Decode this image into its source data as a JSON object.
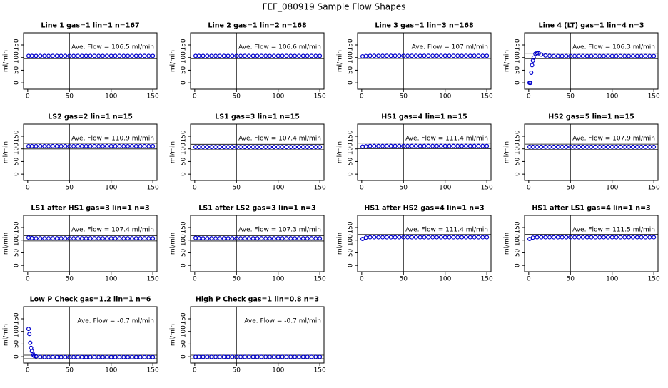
{
  "title": "FEF_080919  Sample Flow Shapes",
  "chart_data": [
    {
      "type": "scatter",
      "title": "Line 1 gas=1 lin=1 n=167",
      "annotation": "Ave. Flow = 106.5 ml/min",
      "ylabel": "ml/min",
      "xlim": [
        -5,
        155
      ],
      "ylim": [
        -25,
        198
      ],
      "xticks": [
        0,
        50,
        100,
        150
      ],
      "yticks": [
        0,
        50,
        100,
        150
      ],
      "vline": 50,
      "hlines": [
        95.9,
        117.2
      ],
      "color": "#0000cc",
      "x": [
        1,
        5,
        10,
        15,
        20,
        25,
        30,
        35,
        40,
        45,
        50,
        55,
        60,
        65,
        70,
        75,
        80,
        85,
        90,
        95,
        100,
        105,
        110,
        115,
        120,
        125,
        130,
        135,
        140,
        145,
        150
      ],
      "values": [
        106.5,
        106.5,
        106.5,
        106.5,
        106.5,
        106.5,
        106.5,
        106.5,
        106.5,
        106.5,
        106.5,
        106.5,
        106.5,
        106.5,
        106.5,
        106.5,
        106.5,
        106.5,
        106.5,
        106.5,
        106.5,
        106.5,
        106.5,
        106.5,
        106.5,
        106.5,
        106.5,
        106.5,
        106.5,
        106.5,
        106.5
      ]
    },
    {
      "type": "scatter",
      "title": "Line 2 gas=1 lin=2 n=168",
      "annotation": "Ave. Flow = 106.6 ml/min",
      "ylabel": "ml/min",
      "xlim": [
        -5,
        155
      ],
      "ylim": [
        -25,
        198
      ],
      "xticks": [
        0,
        50,
        100,
        150
      ],
      "yticks": [
        0,
        50,
        100,
        150
      ],
      "vline": 50,
      "hlines": [
        95.9,
        117.3
      ],
      "color": "#0000cc",
      "x": [
        1,
        5,
        10,
        15,
        20,
        25,
        30,
        35,
        40,
        45,
        50,
        55,
        60,
        65,
        70,
        75,
        80,
        85,
        90,
        95,
        100,
        105,
        110,
        115,
        120,
        125,
        130,
        135,
        140,
        145,
        150
      ],
      "values": [
        106.6,
        106.6,
        106.6,
        106.6,
        106.6,
        106.6,
        106.6,
        106.6,
        106.6,
        106.6,
        106.6,
        106.6,
        106.6,
        106.6,
        106.6,
        106.6,
        106.6,
        106.6,
        106.6,
        106.6,
        106.6,
        106.6,
        106.6,
        106.6,
        106.6,
        106.6,
        106.6,
        106.6,
        106.6,
        106.6,
        106.6
      ]
    },
    {
      "type": "scatter",
      "title": "Line 3 gas=1 lin=3 n=168",
      "annotation": "Ave. Flow = 107 ml/min",
      "ylabel": "ml/min",
      "xlim": [
        -5,
        155
      ],
      "ylim": [
        -25,
        198
      ],
      "xticks": [
        0,
        50,
        100,
        150
      ],
      "yticks": [
        0,
        50,
        100,
        150
      ],
      "vline": 50,
      "hlines": [
        96.3,
        117.7
      ],
      "color": "#0000cc",
      "x": [
        1,
        5,
        10,
        15,
        20,
        25,
        30,
        35,
        40,
        45,
        50,
        55,
        60,
        65,
        70,
        75,
        80,
        85,
        90,
        95,
        100,
        105,
        110,
        115,
        120,
        125,
        130,
        135,
        140,
        145,
        150
      ],
      "values": [
        105,
        106,
        107,
        107,
        107,
        107,
        107,
        107,
        107,
        107,
        107,
        107,
        107,
        107,
        107,
        107,
        107,
        107,
        107,
        107,
        107,
        107,
        107,
        107,
        107,
        107,
        107,
        107,
        107,
        107,
        107
      ]
    },
    {
      "type": "scatter",
      "title": "Line 4 (LT) gas=1 lin=4 n=3",
      "annotation": "Ave. Flow = 106.3 ml/min",
      "ylabel": "ml/min",
      "xlim": [
        -5,
        155
      ],
      "ylim": [
        -25,
        198
      ],
      "xticks": [
        0,
        50,
        100,
        150
      ],
      "yticks": [
        0,
        50,
        100,
        150
      ],
      "vline": 50,
      "hlines": [
        95.7,
        116.9
      ],
      "color": "#0000cc",
      "x": [
        1,
        2,
        3,
        4,
        5,
        6,
        8,
        10,
        12,
        15,
        20,
        25,
        30,
        35,
        40,
        45,
        50,
        55,
        60,
        65,
        70,
        75,
        80,
        85,
        90,
        95,
        100,
        105,
        110,
        115,
        120,
        125,
        130,
        135,
        140,
        145,
        150
      ],
      "values": [
        0,
        0,
        40,
        70,
        88,
        100,
        115,
        118,
        117,
        112,
        108,
        107,
        106,
        106,
        106,
        106,
        106,
        106,
        106,
        106,
        106,
        106,
        106,
        106,
        106,
        106,
        106,
        106,
        106,
        106,
        106,
        106,
        106,
        106,
        106,
        106,
        106
      ]
    },
    {
      "type": "scatter",
      "title": "LS2 gas=2 lin=1 n=15",
      "annotation": "Ave. Flow = 110.9 ml/min",
      "ylabel": "ml/min",
      "xlim": [
        -5,
        155
      ],
      "ylim": [
        -25,
        198
      ],
      "xticks": [
        0,
        50,
        100,
        150
      ],
      "yticks": [
        0,
        50,
        100,
        150
      ],
      "vline": 50,
      "hlines": [
        99.8,
        122
      ],
      "color": "#0000cc",
      "x": [
        1,
        5,
        10,
        15,
        20,
        25,
        30,
        35,
        40,
        45,
        50,
        55,
        60,
        65,
        70,
        75,
        80,
        85,
        90,
        95,
        100,
        105,
        110,
        115,
        120,
        125,
        130,
        135,
        140,
        145,
        150
      ],
      "values": [
        110.9,
        110.9,
        110.9,
        110.9,
        110.9,
        110.9,
        110.9,
        110.9,
        110.9,
        110.9,
        110.9,
        110.9,
        110.9,
        110.9,
        110.9,
        110.9,
        110.9,
        110.9,
        110.9,
        110.9,
        110.9,
        110.9,
        110.9,
        110.9,
        110.9,
        110.9,
        110.9,
        110.9,
        110.9,
        110.9,
        110.9
      ]
    },
    {
      "type": "scatter",
      "title": "LS1 gas=3 lin=1 n=15",
      "annotation": "Ave. Flow = 107.4 ml/min",
      "ylabel": "ml/min",
      "xlim": [
        -5,
        155
      ],
      "ylim": [
        -25,
        198
      ],
      "xticks": [
        0,
        50,
        100,
        150
      ],
      "yticks": [
        0,
        50,
        100,
        150
      ],
      "vline": 50,
      "hlines": [
        96.7,
        118.1
      ],
      "color": "#0000cc",
      "x": [
        1,
        5,
        10,
        15,
        20,
        25,
        30,
        35,
        40,
        45,
        50,
        55,
        60,
        65,
        70,
        75,
        80,
        85,
        90,
        95,
        100,
        105,
        110,
        115,
        120,
        125,
        130,
        135,
        140,
        145,
        150
      ],
      "values": [
        107.4,
        107.4,
        107.4,
        107.4,
        107.4,
        107.4,
        107.4,
        107.4,
        107.4,
        107.4,
        107.4,
        107.4,
        107.4,
        107.4,
        107.4,
        107.4,
        107.4,
        107.4,
        107.4,
        107.4,
        107.4,
        107.4,
        107.4,
        107.4,
        107.4,
        107.4,
        107.4,
        107.4,
        107.4,
        107.4,
        107.4
      ]
    },
    {
      "type": "scatter",
      "title": "HS1 gas=4 lin=1 n=15",
      "annotation": "Ave. Flow = 111.4 ml/min",
      "ylabel": "ml/min",
      "xlim": [
        -5,
        155
      ],
      "ylim": [
        -25,
        198
      ],
      "xticks": [
        0,
        50,
        100,
        150
      ],
      "yticks": [
        0,
        50,
        100,
        150
      ],
      "vline": 50,
      "hlines": [
        100.3,
        122.5
      ],
      "color": "#0000cc",
      "x": [
        1,
        5,
        10,
        15,
        20,
        25,
        30,
        35,
        40,
        45,
        50,
        55,
        60,
        65,
        70,
        75,
        80,
        85,
        90,
        95,
        100,
        105,
        110,
        115,
        120,
        125,
        130,
        135,
        140,
        145,
        150
      ],
      "values": [
        109,
        110,
        111.4,
        111.4,
        111.4,
        111.4,
        111.4,
        111.4,
        111.4,
        111.4,
        111.4,
        111.4,
        111.4,
        111.4,
        111.4,
        111.4,
        111.4,
        111.4,
        111.4,
        111.4,
        111.4,
        111.4,
        111.4,
        111.4,
        111.4,
        111.4,
        111.4,
        111.4,
        111.4,
        111.4,
        111.4
      ]
    },
    {
      "type": "scatter",
      "title": "HS2 gas=5 lin=1 n=15",
      "annotation": "Ave. Flow = 107.9 ml/min",
      "ylabel": "ml/min",
      "xlim": [
        -5,
        155
      ],
      "ylim": [
        -25,
        198
      ],
      "xticks": [
        0,
        50,
        100,
        150
      ],
      "yticks": [
        0,
        50,
        100,
        150
      ],
      "vline": 50,
      "hlines": [
        97.1,
        118.7
      ],
      "color": "#0000cc",
      "x": [
        1,
        5,
        10,
        15,
        20,
        25,
        30,
        35,
        40,
        45,
        50,
        55,
        60,
        65,
        70,
        75,
        80,
        85,
        90,
        95,
        100,
        105,
        110,
        115,
        120,
        125,
        130,
        135,
        140,
        145,
        150
      ],
      "values": [
        107.9,
        107.9,
        107.9,
        107.9,
        107.9,
        107.9,
        107.9,
        107.9,
        107.9,
        107.9,
        107.9,
        107.9,
        107.9,
        107.9,
        107.9,
        107.9,
        107.9,
        107.9,
        107.9,
        107.9,
        107.9,
        107.9,
        107.9,
        107.9,
        107.9,
        107.9,
        107.9,
        107.9,
        107.9,
        107.9,
        107.9
      ]
    },
    {
      "type": "scatter",
      "title": "LS1 after HS1 gas=3 lin=1 n=3",
      "annotation": "Ave. Flow = 107.4 ml/min",
      "ylabel": "ml/min",
      "xlim": [
        -5,
        155
      ],
      "ylim": [
        -25,
        198
      ],
      "xticks": [
        0,
        50,
        100,
        150
      ],
      "yticks": [
        0,
        50,
        100,
        150
      ],
      "vline": 50,
      "hlines": [
        96.7,
        118.1
      ],
      "color": "#0000cc",
      "x": [
        1,
        5,
        10,
        15,
        20,
        25,
        30,
        35,
        40,
        45,
        50,
        55,
        60,
        65,
        70,
        75,
        80,
        85,
        90,
        95,
        100,
        105,
        110,
        115,
        120,
        125,
        130,
        135,
        140,
        145,
        150
      ],
      "values": [
        110,
        108,
        107.4,
        107.4,
        107.4,
        107.4,
        107.4,
        107.4,
        107.4,
        107.4,
        107.4,
        107.4,
        107.4,
        107.4,
        107.4,
        107.4,
        107.4,
        107.4,
        107.4,
        107.4,
        107.4,
        107.4,
        107.4,
        107.4,
        107.4,
        107.4,
        107.4,
        107.4,
        107.4,
        107.4,
        107.4
      ]
    },
    {
      "type": "scatter",
      "title": "LS1 after LS2 gas=3 lin=1 n=3",
      "annotation": "Ave. Flow = 107.3 ml/min",
      "ylabel": "ml/min",
      "xlim": [
        -5,
        155
      ],
      "ylim": [
        -25,
        198
      ],
      "xticks": [
        0,
        50,
        100,
        150
      ],
      "yticks": [
        0,
        50,
        100,
        150
      ],
      "vline": 50,
      "hlines": [
        96.6,
        118
      ],
      "color": "#0000cc",
      "x": [
        1,
        5,
        10,
        15,
        20,
        25,
        30,
        35,
        40,
        45,
        50,
        55,
        60,
        65,
        70,
        75,
        80,
        85,
        90,
        95,
        100,
        105,
        110,
        115,
        120,
        125,
        130,
        135,
        140,
        145,
        150
      ],
      "values": [
        109,
        108,
        107.3,
        107.3,
        107.3,
        107.3,
        107.3,
        107.3,
        107.3,
        107.3,
        107.3,
        107.3,
        107.3,
        107.3,
        107.3,
        107.3,
        107.3,
        107.3,
        107.3,
        107.3,
        107.3,
        107.3,
        107.3,
        107.3,
        107.3,
        107.3,
        107.3,
        107.3,
        107.3,
        107.3,
        107.3
      ]
    },
    {
      "type": "scatter",
      "title": "HS1 after HS2 gas=4 lin=1 n=3",
      "annotation": "Ave. Flow = 111.4 ml/min",
      "ylabel": "ml/min",
      "xlim": [
        -5,
        155
      ],
      "ylim": [
        -25,
        198
      ],
      "xticks": [
        0,
        50,
        100,
        150
      ],
      "yticks": [
        0,
        50,
        100,
        150
      ],
      "vline": 50,
      "hlines": [
        100.3,
        122.5
      ],
      "color": "#0000cc",
      "x": [
        1,
        5,
        10,
        15,
        20,
        25,
        30,
        35,
        40,
        45,
        50,
        55,
        60,
        65,
        70,
        75,
        80,
        85,
        90,
        95,
        100,
        105,
        110,
        115,
        120,
        125,
        130,
        135,
        140,
        145,
        150
      ],
      "values": [
        105,
        110,
        111.4,
        111.4,
        111.4,
        111.4,
        111.4,
        111.4,
        111.4,
        111.4,
        111.4,
        111.4,
        111.4,
        111.4,
        111.4,
        111.4,
        111.4,
        111.4,
        111.4,
        111.4,
        111.4,
        111.4,
        111.4,
        111.4,
        111.4,
        111.4,
        111.4,
        111.4,
        111.4,
        111.4,
        111.4
      ]
    },
    {
      "type": "scatter",
      "title": "HS1 after LS1 gas=4 lin=1 n=3",
      "annotation": "Ave. Flow = 111.5 ml/min",
      "ylabel": "ml/min",
      "xlim": [
        -5,
        155
      ],
      "ylim": [
        -25,
        198
      ],
      "xticks": [
        0,
        50,
        100,
        150
      ],
      "yticks": [
        0,
        50,
        100,
        150
      ],
      "vline": 50,
      "hlines": [
        100.4,
        122.7
      ],
      "color": "#0000cc",
      "x": [
        1,
        5,
        10,
        15,
        20,
        25,
        30,
        35,
        40,
        45,
        50,
        55,
        60,
        65,
        70,
        75,
        80,
        85,
        90,
        95,
        100,
        105,
        110,
        115,
        120,
        125,
        130,
        135,
        140,
        145,
        150
      ],
      "values": [
        105,
        110,
        111.5,
        111.5,
        111.5,
        111.5,
        111.5,
        111.5,
        111.5,
        111.5,
        111.5,
        111.5,
        111.5,
        111.5,
        111.5,
        111.5,
        111.5,
        111.5,
        111.5,
        111.5,
        111.5,
        111.5,
        111.5,
        111.5,
        111.5,
        111.5,
        111.5,
        111.5,
        111.5,
        111.5,
        111.5
      ]
    },
    {
      "type": "scatter",
      "title": "Low P Check gas=1.2 lin=1 n=6",
      "annotation": "Ave. Flow = -0.7 ml/min",
      "ylabel": "ml/min",
      "xlim": [
        -5,
        155
      ],
      "ylim": [
        -25,
        198
      ],
      "xticks": [
        0,
        50,
        100,
        150
      ],
      "yticks": [
        0,
        50,
        100,
        150
      ],
      "vline": 50,
      "hlines": [
        -8,
        6
      ],
      "color": "#0000cc",
      "x": [
        1,
        2,
        3,
        4,
        5,
        6,
        7,
        8,
        10,
        15,
        20,
        25,
        30,
        35,
        40,
        45,
        50,
        55,
        60,
        65,
        70,
        75,
        80,
        85,
        90,
        95,
        100,
        105,
        110,
        115,
        120,
        125,
        130,
        135,
        140,
        145,
        150
      ],
      "values": [
        110,
        90,
        55,
        35,
        22,
        12,
        6,
        3,
        1,
        -1,
        -1.5,
        -1.5,
        -1.5,
        -1.5,
        -1.5,
        -1.5,
        -1.5,
        -1.5,
        -1.5,
        -1.5,
        -1.5,
        -1.5,
        -1.5,
        -1.5,
        -1.5,
        -1.5,
        -1.5,
        -1.5,
        -1.5,
        -1.5,
        -1.5,
        -1.5,
        -1.5,
        -1.5,
        -1.5,
        -1.5,
        -1.5
      ]
    },
    {
      "type": "scatter",
      "title": "High P Check gas=1 lin=0.8 n=3",
      "annotation": "Ave. Flow = -0.7 ml/min",
      "ylabel": "ml/min",
      "xlim": [
        -5,
        155
      ],
      "ylim": [
        -25,
        198
      ],
      "xticks": [
        0,
        50,
        100,
        150
      ],
      "yticks": [
        0,
        50,
        100,
        150
      ],
      "vline": 50,
      "hlines": [
        -8,
        6
      ],
      "color": "#0000cc",
      "x": [
        1,
        5,
        10,
        15,
        20,
        25,
        30,
        35,
        40,
        45,
        50,
        55,
        60,
        65,
        70,
        75,
        80,
        85,
        90,
        95,
        100,
        105,
        110,
        115,
        120,
        125,
        130,
        135,
        140,
        145,
        150
      ],
      "values": [
        -0.7,
        -0.7,
        -0.7,
        -0.7,
        -0.7,
        -0.7,
        -0.7,
        -0.7,
        -0.7,
        -0.7,
        -0.7,
        -0.7,
        -0.7,
        -0.7,
        -0.7,
        -0.7,
        -0.7,
        -0.7,
        -0.7,
        -0.7,
        -0.7,
        -0.7,
        -0.7,
        -0.7,
        -0.7,
        -0.7,
        -0.7,
        -0.7,
        -0.7,
        -0.7,
        -0.7
      ]
    }
  ]
}
